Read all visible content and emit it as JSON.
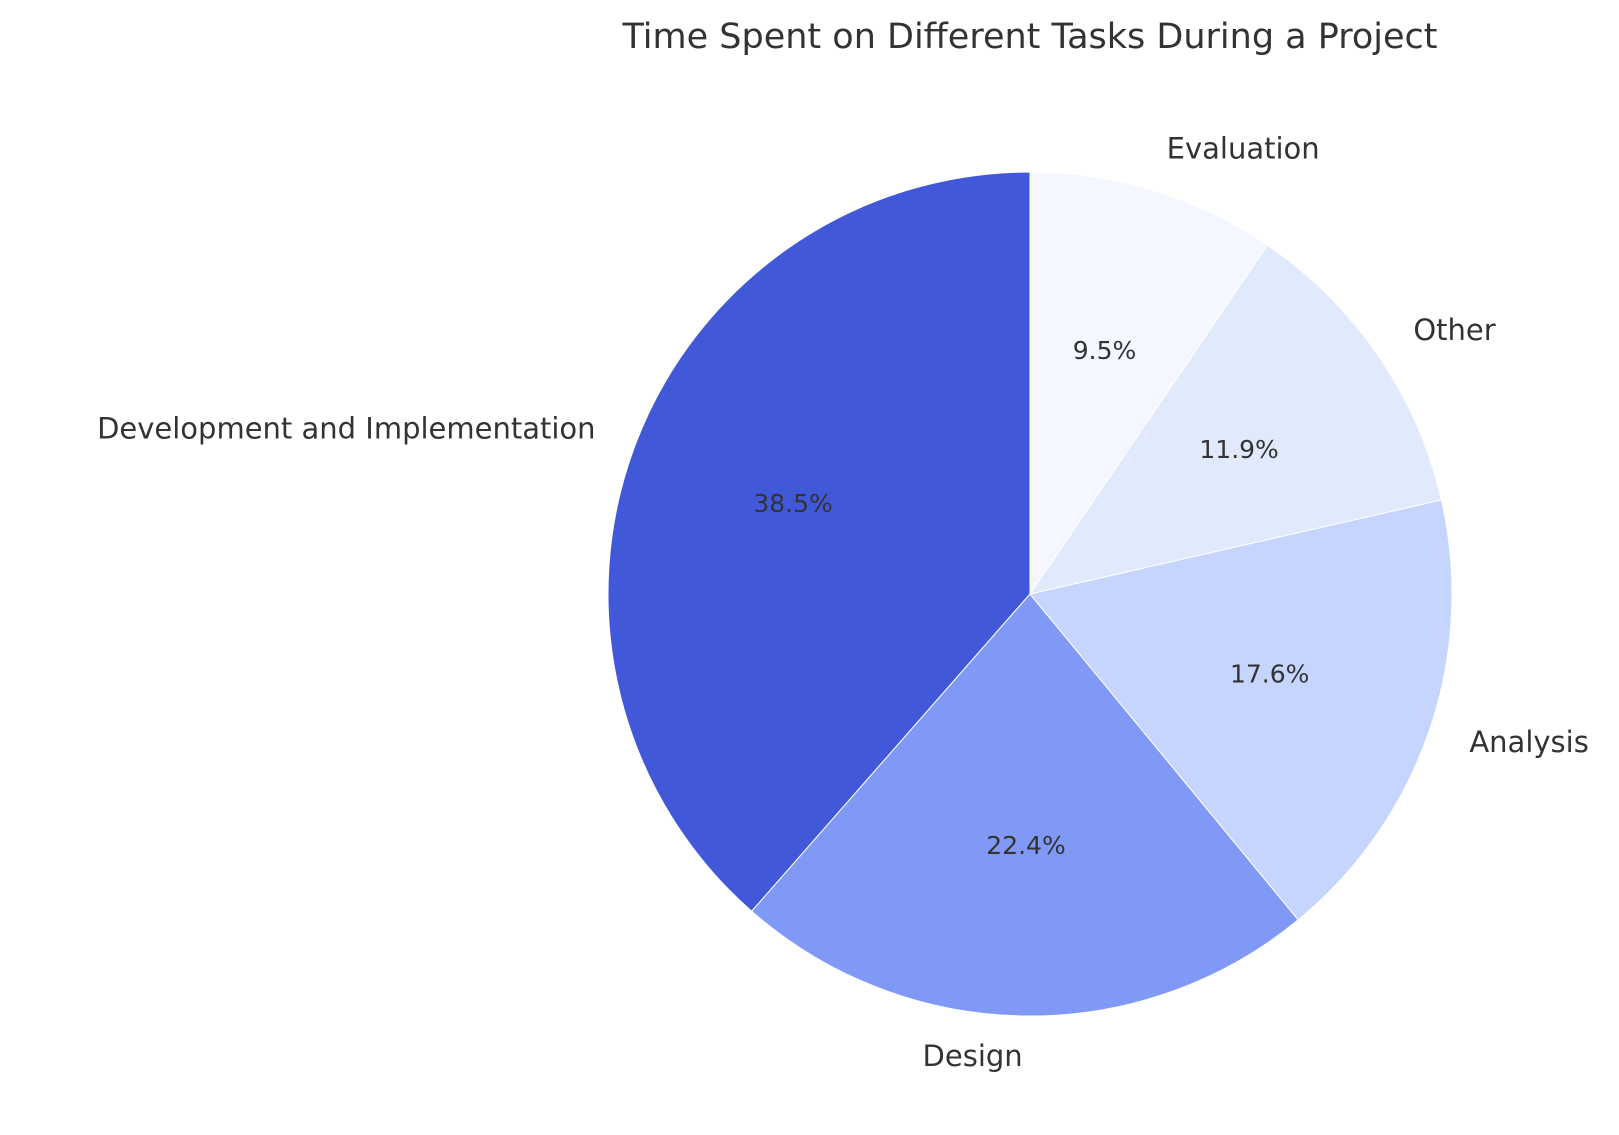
{
  "chart_data": {
    "type": "pie",
    "title": "Time Spent on Different Tasks During a Project",
    "start_angle_deg": 90,
    "direction": "counterclockwise",
    "slices": [
      {
        "label": "Development and Implementation",
        "value": 38.5,
        "display": "38.5%",
        "color": "#4158d8"
      },
      {
        "label": "Design",
        "value": 22.4,
        "display": "22.4%",
        "color": "#8099f7"
      },
      {
        "label": "Analysis",
        "value": 17.6,
        "display": "17.6%",
        "color": "#c5d5fe"
      },
      {
        "label": "Other",
        "value": 11.9,
        "display": "11.9%",
        "color": "#e1e9fc"
      },
      {
        "label": "Evaluation",
        "value": 9.5,
        "display": "9.5%",
        "color": "#f4f7ff"
      }
    ]
  }
}
